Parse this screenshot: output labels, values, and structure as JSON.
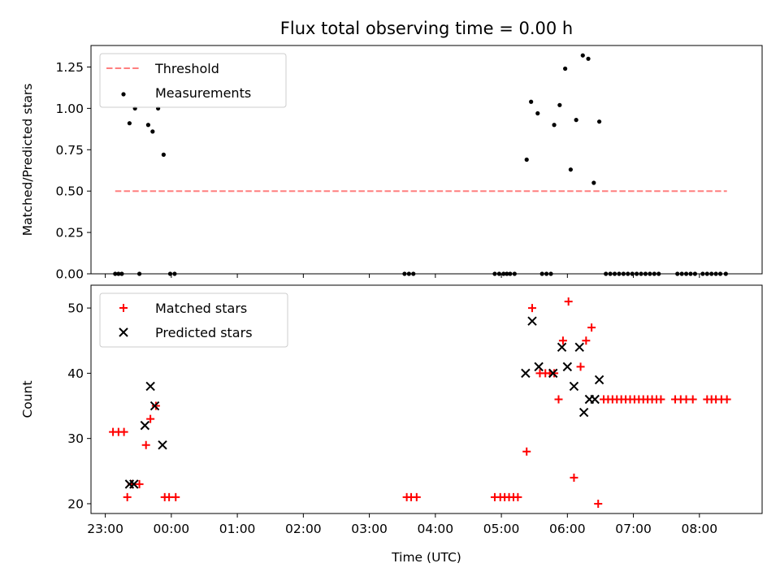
{
  "figure": {
    "title": "Flux total observing time = 0.00 h"
  },
  "chart_data": [
    {
      "type": "scatter",
      "ylabel": "Matched/Predicted stars",
      "xlabel": "",
      "xlim": [
        "22:47",
        "08:57"
      ],
      "ylim": [
        0,
        1.38
      ],
      "x_ticks": [
        "23:00",
        "00:00",
        "01:00",
        "02:00",
        "03:00",
        "04:00",
        "05:00",
        "06:00",
        "07:00",
        "08:00"
      ],
      "y_ticks": [
        "0.00",
        "0.25",
        "0.50",
        "0.75",
        "1.00",
        "1.25"
      ],
      "y_tick_values": [
        0,
        0.25,
        0.5,
        0.75,
        1.0,
        1.25
      ],
      "legend": {
        "placement": "top-left",
        "entries": [
          "Threshold",
          "Measurements"
        ]
      },
      "series": [
        {
          "name": "Threshold",
          "style": "dashed-line",
          "color": "#ff7f7f",
          "points": [
            [
              "23:09",
              0.5
            ],
            [
              "08:25",
              0.5
            ]
          ]
        },
        {
          "name": "Measurements",
          "style": "dot",
          "color": "#000000",
          "points": [
            [
              "23:09",
              0
            ],
            [
              "23:12",
              0
            ],
            [
              "23:15",
              0
            ],
            [
              "23:22",
              0.91
            ],
            [
              "23:27",
              1.0
            ],
            [
              "23:31",
              0
            ],
            [
              "23:39",
              0.9
            ],
            [
              "23:43",
              0.86
            ],
            [
              "23:48",
              1.0
            ],
            [
              "23:53",
              0.72
            ],
            [
              "23:59",
              0
            ],
            [
              "00:03",
              0
            ],
            [
              "03:32",
              0
            ],
            [
              "03:36",
              0
            ],
            [
              "03:40",
              0
            ],
            [
              "04:54",
              0
            ],
            [
              "04:58",
              0
            ],
            [
              "05:02",
              0
            ],
            [
              "05:05",
              0
            ],
            [
              "05:08",
              0
            ],
            [
              "05:12",
              0
            ],
            [
              "05:23",
              0.69
            ],
            [
              "05:27",
              1.04
            ],
            [
              "05:33",
              0.97
            ],
            [
              "05:37",
              0
            ],
            [
              "05:41",
              0
            ],
            [
              "05:45",
              0
            ],
            [
              "05:48",
              0.9
            ],
            [
              "05:53",
              1.02
            ],
            [
              "05:58",
              1.24
            ],
            [
              "06:03",
              0.63
            ],
            [
              "06:08",
              0.93
            ],
            [
              "06:14",
              1.32
            ],
            [
              "06:19",
              1.3
            ],
            [
              "06:24",
              0.55
            ],
            [
              "06:29",
              0.92
            ],
            [
              "06:35",
              0
            ],
            [
              "06:39",
              0
            ],
            [
              "06:43",
              0
            ],
            [
              "06:47",
              0
            ],
            [
              "06:51",
              0
            ],
            [
              "06:55",
              0
            ],
            [
              "06:59",
              0
            ],
            [
              "07:03",
              0
            ],
            [
              "07:07",
              0
            ],
            [
              "07:11",
              0
            ],
            [
              "07:15",
              0
            ],
            [
              "07:19",
              0
            ],
            [
              "07:23",
              0
            ],
            [
              "07:40",
              0
            ],
            [
              "07:44",
              0
            ],
            [
              "07:48",
              0
            ],
            [
              "07:52",
              0
            ],
            [
              "07:56",
              0
            ],
            [
              "08:03",
              0
            ],
            [
              "08:07",
              0
            ],
            [
              "08:11",
              0
            ],
            [
              "08:15",
              0
            ],
            [
              "08:19",
              0
            ],
            [
              "08:24",
              0
            ]
          ]
        }
      ]
    },
    {
      "type": "scatter",
      "ylabel": "Count",
      "xlabel": "Time (UTC)",
      "xlim": [
        "22:47",
        "08:57"
      ],
      "ylim": [
        18.5,
        53.5
      ],
      "x_ticks": [
        "23:00",
        "00:00",
        "01:00",
        "02:00",
        "03:00",
        "04:00",
        "05:00",
        "06:00",
        "07:00",
        "08:00"
      ],
      "y_ticks": [
        "20",
        "30",
        "40",
        "50"
      ],
      "y_tick_values": [
        20,
        30,
        40,
        50
      ],
      "legend": {
        "placement": "top-left",
        "entries": [
          "Matched stars",
          "Predicted stars"
        ]
      },
      "series": [
        {
          "name": "Matched stars",
          "style": "plus",
          "color": "#ff0000",
          "points": [
            [
              "23:07",
              31
            ],
            [
              "23:12",
              31
            ],
            [
              "23:17",
              31
            ],
            [
              "23:20",
              21
            ],
            [
              "23:24",
              23
            ],
            [
              "23:31",
              23
            ],
            [
              "23:37",
              29
            ],
            [
              "23:41",
              33
            ],
            [
              "23:46",
              35
            ],
            [
              "23:54",
              21
            ],
            [
              "23:58",
              21
            ],
            [
              "00:04",
              21
            ],
            [
              "03:34",
              21
            ],
            [
              "03:38",
              21
            ],
            [
              "03:43",
              21
            ],
            [
              "04:54",
              21
            ],
            [
              "04:59",
              21
            ],
            [
              "05:03",
              21
            ],
            [
              "05:07",
              21
            ],
            [
              "05:11",
              21
            ],
            [
              "05:15",
              21
            ],
            [
              "05:23",
              28
            ],
            [
              "05:28",
              50
            ],
            [
              "05:35",
              40
            ],
            [
              "05:40",
              40
            ],
            [
              "05:44",
              40
            ],
            [
              "05:48",
              40
            ],
            [
              "05:52",
              36
            ],
            [
              "05:56",
              45
            ],
            [
              "06:01",
              51
            ],
            [
              "06:06",
              24
            ],
            [
              "06:12",
              41
            ],
            [
              "06:17",
              45
            ],
            [
              "06:22",
              47
            ],
            [
              "06:28",
              20
            ],
            [
              "06:33",
              36
            ],
            [
              "06:37",
              36
            ],
            [
              "06:41",
              36
            ],
            [
              "06:45",
              36
            ],
            [
              "06:49",
              36
            ],
            [
              "06:53",
              36
            ],
            [
              "06:57",
              36
            ],
            [
              "07:01",
              36
            ],
            [
              "07:05",
              36
            ],
            [
              "07:09",
              36
            ],
            [
              "07:13",
              36
            ],
            [
              "07:17",
              36
            ],
            [
              "07:21",
              36
            ],
            [
              "07:25",
              36
            ],
            [
              "07:38",
              36
            ],
            [
              "07:43",
              36
            ],
            [
              "07:48",
              36
            ],
            [
              "07:54",
              36
            ],
            [
              "08:07",
              36
            ],
            [
              "08:11",
              36
            ],
            [
              "08:15",
              36
            ],
            [
              "08:20",
              36
            ],
            [
              "08:25",
              36
            ]
          ]
        },
        {
          "name": "Predicted stars",
          "style": "x",
          "color": "#000000",
          "points": [
            [
              "23:22",
              23
            ],
            [
              "23:26",
              23
            ],
            [
              "23:36",
              32
            ],
            [
              "23:41",
              38
            ],
            [
              "23:45",
              35
            ],
            [
              "23:52",
              29
            ],
            [
              "05:22",
              40
            ],
            [
              "05:28",
              48
            ],
            [
              "05:34",
              41
            ],
            [
              "05:47",
              40
            ],
            [
              "05:55",
              44
            ],
            [
              "06:00",
              41
            ],
            [
              "06:06",
              38
            ],
            [
              "06:11",
              44
            ],
            [
              "06:15",
              34
            ],
            [
              "06:20",
              36
            ],
            [
              "06:25",
              36
            ],
            [
              "06:29",
              39
            ]
          ]
        }
      ]
    }
  ]
}
